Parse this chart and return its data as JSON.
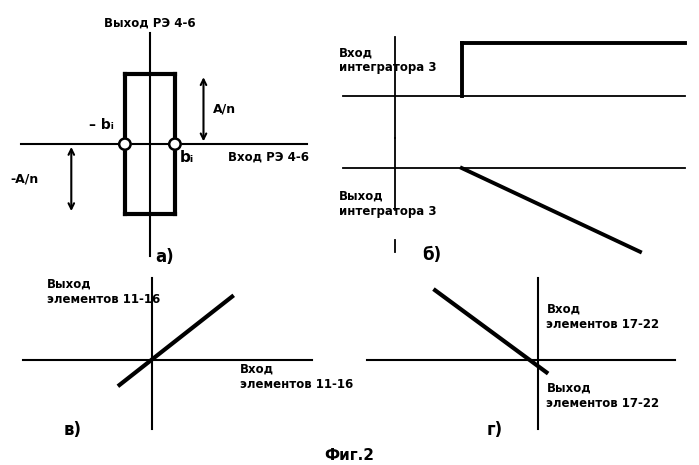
{
  "title": "Фиг.2",
  "background_color": "#ffffff",
  "fig_width": 6.99,
  "fig_height": 4.65,
  "panel_a": {
    "label": "а)",
    "label_neg_bi": "– bᵢ",
    "label_bi": "bᵢ",
    "label_An": "A/n",
    "label_negAn": "-A/n",
    "label_vyhod": "Выход РЭ 4-6",
    "label_vhod": "Вход РЭ 4-6"
  },
  "panel_b": {
    "label": "б)",
    "label_vhod": "Вход\nинтегратора 3",
    "label_vyhod": "Выход\nинтегратора 3"
  },
  "panel_v": {
    "label": "в)",
    "label_vyhod": "Выход\nэлементов 11-16",
    "label_vhod": "Вход\nэлементов 11-16"
  },
  "panel_g": {
    "label": "г)",
    "label_vhod": "Вход\nэлементов 17-22",
    "label_vyhod": "Выход\nэлементов 17-22"
  }
}
